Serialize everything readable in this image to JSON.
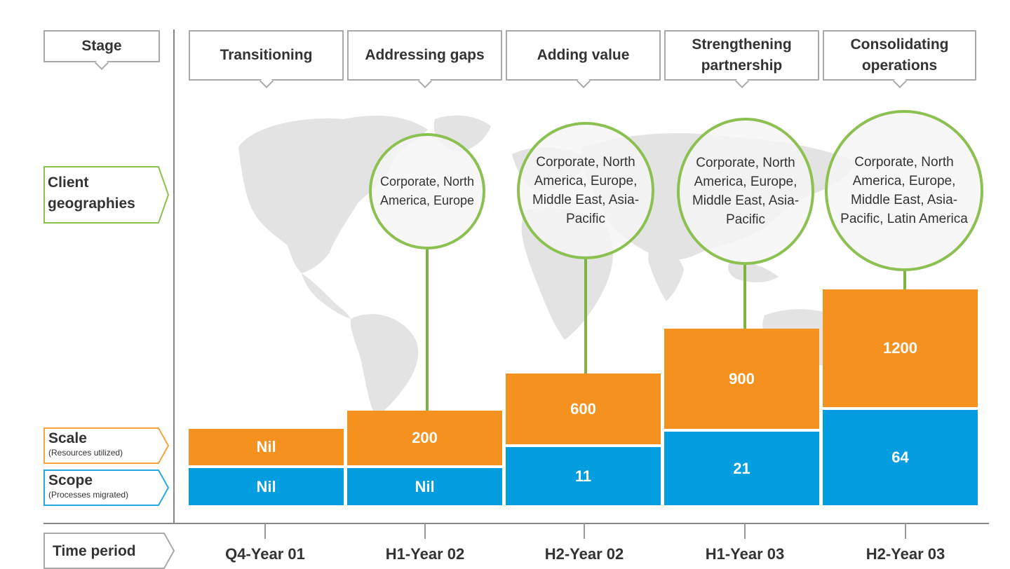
{
  "row_labels": {
    "stage": "Stage",
    "client_geographies": "Client\ngeographies",
    "scale": "Scale",
    "scale_sub": "(Resources utilized)",
    "scope": "Scope",
    "scope_sub": "(Processes migrated)",
    "time_period": "Time period"
  },
  "stages": [
    {
      "name": "Transitioning",
      "time": "Q4-Year 01",
      "scale": "Nil",
      "scope": "Nil",
      "geographies": ""
    },
    {
      "name": "Addressing gaps",
      "time": "H1-Year 02",
      "scale": "200",
      "scope": "Nil",
      "geographies": "Corporate, North America, Europe"
    },
    {
      "name": "Adding value",
      "time": "H2-Year 02",
      "scale": "600",
      "scope": "11",
      "geographies": "Corporate, North America, Europe, Middle East, Asia-Pacific"
    },
    {
      "name": "Strengthening partnership",
      "time": "H1-Year 03",
      "scale": "900",
      "scope": "21",
      "geographies": "Corporate, North America, Europe, Middle East, Asia-Pacific"
    },
    {
      "name": "Consolidating operations",
      "time": "H2-Year 03",
      "scale": "1200",
      "scope": "64",
      "geographies": "Corporate, North America, Europe, Middle East, Asia-Pacific, Latin America"
    }
  ],
  "colors": {
    "scale": "#f5921f",
    "scope": "#049ee0",
    "geography_accent": "#8cc051",
    "scale_label_border": "#f5a33a",
    "scope_label_border": "#29a8e0",
    "stage_border": "#a9a9a9"
  },
  "icons": {
    "background": "world-map-icon"
  }
}
